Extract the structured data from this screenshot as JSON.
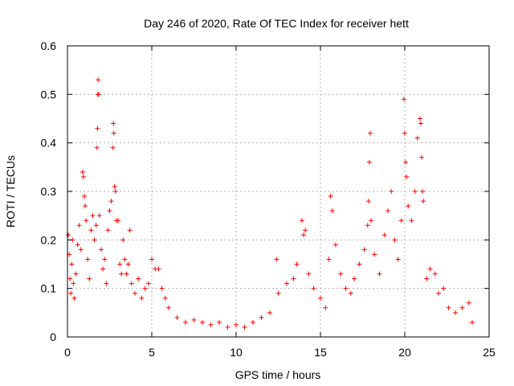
{
  "chart_data": {
    "type": "scatter",
    "title": "Day 246 of 2020, Rate Of TEC Index for receiver hett",
    "xlabel": "GPS time / hours",
    "ylabel": "ROTI / TECUs",
    "xlim": [
      0,
      25
    ],
    "ylim": [
      0,
      0.6
    ],
    "x_ticks": [
      "0",
      "5",
      "10",
      "15",
      "20",
      "25"
    ],
    "y_ticks": [
      "0",
      "0.1",
      "0.2",
      "0.3",
      "0.4",
      "0.5",
      "0.6"
    ],
    "grid": true,
    "marker": "+",
    "color": "#ff0000",
    "series": [
      {
        "points": [
          [
            0.05,
            0.21
          ],
          [
            0.1,
            0.17
          ],
          [
            0.15,
            0.12
          ],
          [
            0.2,
            0.09
          ],
          [
            0.25,
            0.15
          ],
          [
            0.3,
            0.2
          ],
          [
            0.35,
            0.11
          ],
          [
            0.4,
            0.08
          ],
          [
            0.5,
            0.13
          ],
          [
            0.6,
            0.19
          ],
          [
            0.7,
            0.23
          ],
          [
            0.8,
            0.18
          ],
          [
            0.9,
            0.34
          ],
          [
            0.95,
            0.33
          ],
          [
            1.0,
            0.29
          ],
          [
            1.05,
            0.27
          ],
          [
            1.1,
            0.24
          ],
          [
            1.2,
            0.16
          ],
          [
            1.3,
            0.12
          ],
          [
            1.4,
            0.22
          ],
          [
            1.5,
            0.25
          ],
          [
            1.6,
            0.2
          ],
          [
            1.7,
            0.23
          ],
          [
            1.75,
            0.39
          ],
          [
            1.78,
            0.43
          ],
          [
            1.8,
            0.5
          ],
          [
            1.82,
            0.53
          ],
          [
            1.85,
            0.5
          ],
          [
            1.9,
            0.25
          ],
          [
            2.0,
            0.18
          ],
          [
            2.1,
            0.14
          ],
          [
            2.2,
            0.16
          ],
          [
            2.3,
            0.11
          ],
          [
            2.4,
            0.22
          ],
          [
            2.5,
            0.26
          ],
          [
            2.6,
            0.28
          ],
          [
            2.7,
            0.39
          ],
          [
            2.72,
            0.44
          ],
          [
            2.75,
            0.42
          ],
          [
            2.8,
            0.31
          ],
          [
            2.85,
            0.3
          ],
          [
            2.9,
            0.24
          ],
          [
            3.0,
            0.24
          ],
          [
            3.1,
            0.15
          ],
          [
            3.2,
            0.13
          ],
          [
            3.3,
            0.2
          ],
          [
            3.4,
            0.16
          ],
          [
            3.5,
            0.13
          ],
          [
            3.6,
            0.15
          ],
          [
            3.7,
            0.22
          ],
          [
            3.8,
            0.11
          ],
          [
            4.0,
            0.09
          ],
          [
            4.2,
            0.12
          ],
          [
            4.4,
            0.08
          ],
          [
            4.6,
            0.1
          ],
          [
            4.8,
            0.11
          ],
          [
            5.0,
            0.16
          ],
          [
            5.2,
            0.14
          ],
          [
            5.4,
            0.14
          ],
          [
            5.6,
            0.1
          ],
          [
            5.8,
            0.08
          ],
          [
            6.0,
            0.06
          ],
          [
            6.5,
            0.04
          ],
          [
            7.0,
            0.03
          ],
          [
            7.5,
            0.035
          ],
          [
            8.0,
            0.03
          ],
          [
            8.5,
            0.025
          ],
          [
            9.0,
            0.03
          ],
          [
            9.5,
            0.02
          ],
          [
            10.0,
            0.025
          ],
          [
            10.5,
            0.02
          ],
          [
            11.0,
            0.03
          ],
          [
            11.5,
            0.04
          ],
          [
            12.0,
            0.05
          ],
          [
            12.4,
            0.16
          ],
          [
            12.5,
            0.09
          ],
          [
            13.0,
            0.11
          ],
          [
            13.4,
            0.12
          ],
          [
            13.6,
            0.15
          ],
          [
            13.9,
            0.24
          ],
          [
            14.0,
            0.21
          ],
          [
            14.1,
            0.22
          ],
          [
            14.3,
            0.13
          ],
          [
            14.6,
            0.1
          ],
          [
            15.0,
            0.08
          ],
          [
            15.3,
            0.06
          ],
          [
            15.5,
            0.16
          ],
          [
            15.6,
            0.29
          ],
          [
            15.7,
            0.26
          ],
          [
            15.9,
            0.19
          ],
          [
            16.2,
            0.13
          ],
          [
            16.5,
            0.1
          ],
          [
            16.8,
            0.09
          ],
          [
            17.0,
            0.12
          ],
          [
            17.3,
            0.15
          ],
          [
            17.6,
            0.18
          ],
          [
            17.8,
            0.23
          ],
          [
            17.85,
            0.28
          ],
          [
            17.9,
            0.36
          ],
          [
            17.95,
            0.42
          ],
          [
            18.0,
            0.24
          ],
          [
            18.2,
            0.17
          ],
          [
            18.5,
            0.13
          ],
          [
            18.8,
            0.21
          ],
          [
            19.0,
            0.26
          ],
          [
            19.2,
            0.3
          ],
          [
            19.4,
            0.2
          ],
          [
            19.6,
            0.16
          ],
          [
            19.8,
            0.24
          ],
          [
            19.95,
            0.49
          ],
          [
            20.0,
            0.42
          ],
          [
            20.05,
            0.36
          ],
          [
            20.1,
            0.33
          ],
          [
            20.2,
            0.27
          ],
          [
            20.4,
            0.24
          ],
          [
            20.6,
            0.3
          ],
          [
            20.75,
            0.41
          ],
          [
            20.9,
            0.45
          ],
          [
            20.95,
            0.44
          ],
          [
            21.0,
            0.37
          ],
          [
            21.05,
            0.3
          ],
          [
            21.1,
            0.28
          ],
          [
            21.3,
            0.12
          ],
          [
            21.5,
            0.14
          ],
          [
            21.8,
            0.13
          ],
          [
            22.0,
            0.09
          ],
          [
            22.3,
            0.1
          ],
          [
            22.6,
            0.06
          ],
          [
            23.0,
            0.05
          ],
          [
            23.4,
            0.06
          ],
          [
            23.8,
            0.07
          ],
          [
            24.0,
            0.03
          ]
        ]
      }
    ]
  }
}
